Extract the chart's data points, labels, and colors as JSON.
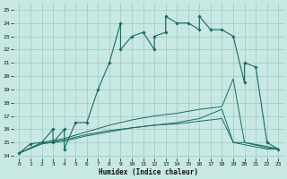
{
  "xlabel": "Humidex (Indice chaleur)",
  "bg_color": "#c8e8e4",
  "grid_color": "#a0c8c4",
  "line_color": "#1a6b5e",
  "xlim": [
    -0.5,
    23.5
  ],
  "ylim": [
    13.8,
    25.5
  ],
  "xticks": [
    0,
    1,
    2,
    3,
    4,
    5,
    6,
    7,
    8,
    9,
    10,
    11,
    12,
    13,
    14,
    15,
    16,
    17,
    18,
    19,
    20,
    21,
    22,
    23
  ],
  "yticks": [
    14,
    15,
    16,
    17,
    18,
    19,
    20,
    21,
    22,
    23,
    24,
    25
  ],
  "main_x": [
    0,
    1,
    2,
    3,
    3,
    4,
    4,
    5,
    6,
    7,
    8,
    9,
    9,
    10,
    11,
    12,
    12,
    13,
    13,
    14,
    15,
    16,
    16,
    17,
    18,
    19,
    20,
    20,
    21,
    22,
    23
  ],
  "main_y": [
    14.2,
    14.9,
    15.0,
    16.0,
    15.0,
    16.0,
    14.5,
    16.5,
    16.5,
    19.0,
    21.0,
    24.0,
    22.0,
    23.0,
    23.3,
    22.0,
    23.0,
    23.3,
    24.5,
    24.0,
    24.0,
    23.5,
    24.5,
    23.5,
    23.5,
    23.0,
    19.5,
    21.0,
    20.7,
    15.0,
    14.5
  ],
  "line2_x": [
    0,
    2,
    4,
    6,
    8,
    10,
    12,
    14,
    16,
    18,
    19,
    20,
    22,
    23
  ],
  "line2_y": [
    14.2,
    15.0,
    15.3,
    15.8,
    16.3,
    16.7,
    17.0,
    17.2,
    17.5,
    17.7,
    19.8,
    15.0,
    14.7,
    14.5
  ],
  "line3_x": [
    0,
    2,
    4,
    6,
    8,
    10,
    12,
    14,
    16,
    18,
    19,
    20,
    22,
    23
  ],
  "line3_y": [
    14.2,
    14.9,
    15.1,
    15.5,
    15.8,
    16.1,
    16.3,
    16.5,
    16.8,
    17.5,
    15.0,
    15.0,
    14.6,
    14.5
  ],
  "line4_x": [
    0,
    2,
    4,
    6,
    8,
    10,
    12,
    14,
    16,
    18,
    19,
    22,
    23
  ],
  "line4_y": [
    14.2,
    14.9,
    15.2,
    15.6,
    15.9,
    16.1,
    16.3,
    16.4,
    16.6,
    16.8,
    15.0,
    14.5,
    14.5
  ]
}
